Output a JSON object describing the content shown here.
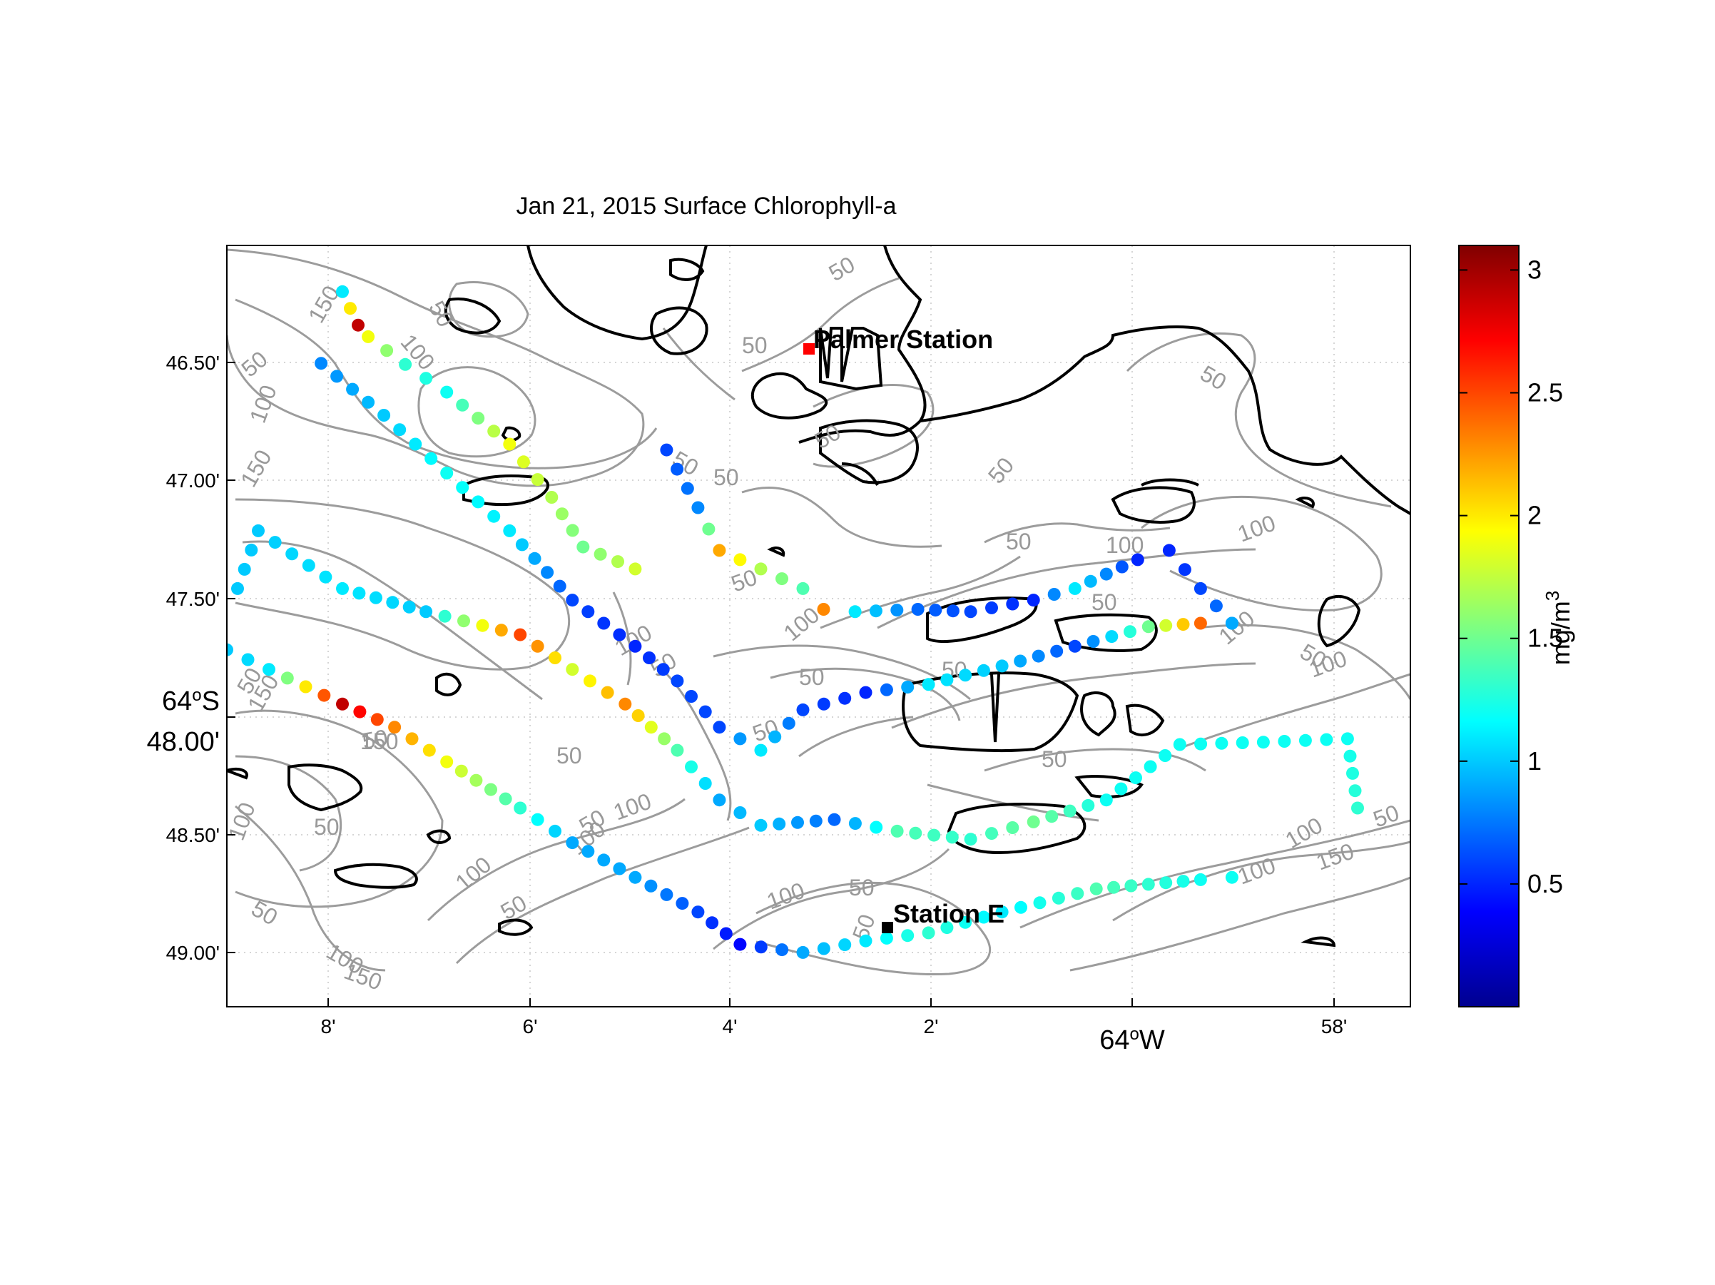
{
  "title": "Jan 21, 2015 Surface Chlorophyll-a",
  "x_axis": {
    "tick_labels": [
      "8'",
      "6'",
      "4'",
      "2'",
      "58'"
    ],
    "degree_label": "64",
    "degree_suffix": "W"
  },
  "y_axis": {
    "tick_labels": [
      "46.50'",
      "47.00'",
      "47.50'",
      "48.00'",
      "48.50'",
      "49.00'"
    ],
    "degree_label": "64",
    "degree_suffix": "S"
  },
  "colorbar": {
    "label": "mg/m",
    "label_sup": "3",
    "tick_labels": [
      "0.5",
      "1",
      "1.5",
      "2",
      "2.5",
      "3"
    ],
    "min": 0,
    "max": 3.1,
    "colormap": "jet"
  },
  "stations": [
    {
      "name": "Palmer Station",
      "marker_color": "#ff0000"
    },
    {
      "name": "Station E",
      "marker_color": "#000000"
    }
  ],
  "contour_labels": [
    "50",
    "100",
    "150"
  ],
  "colors": {
    "coastline": "#000000",
    "bathymetry": "#9c9c9c",
    "grid": "#c8c8c8"
  },
  "chart_data": {
    "type": "scatter",
    "title": "Jan 21, 2015 Surface Chlorophyll-a",
    "xlabel": "64°W",
    "ylabel": "64°S",
    "xlim": [
      -64.1517,
      -63.9633
    ],
    "ylim": [
      -64.8212,
      -64.7553
    ],
    "color_variable": "Surface Chlorophyll-a (mg/m^3)",
    "color_range": [
      0,
      3.1
    ],
    "tracks": [
      {
        "id": "A",
        "points": [
          [
            -64.1333,
            -64.7593,
            1.1
          ],
          [
            -64.1308,
            -64.7622,
            2.9
          ],
          [
            -64.1292,
            -64.7632,
            1.9
          ],
          [
            -64.1233,
            -64.7656,
            1.3
          ],
          [
            -64.1167,
            -64.768,
            1.2
          ],
          [
            -64.1067,
            -64.7725,
            1.9
          ],
          [
            -64.1,
            -64.7771,
            1.7
          ],
          [
            -64.095,
            -64.7814,
            1.5
          ],
          [
            -64.0867,
            -64.7833,
            1.8
          ]
        ]
      },
      {
        "id": "B",
        "points": [
          [
            -64.0817,
            -64.773,
            0.6
          ],
          [
            -64.0767,
            -64.778,
            0.8
          ],
          [
            -64.0733,
            -64.7817,
            2.2
          ],
          [
            -64.0667,
            -64.7833,
            1.7
          ],
          [
            -64.06,
            -64.785,
            1.4
          ],
          [
            -64.0567,
            -64.7868,
            2.3
          ],
          [
            -64.0517,
            -64.787,
            1.1
          ],
          [
            -64.0417,
            -64.7868,
            0.7
          ],
          [
            -64.0333,
            -64.787,
            0.6
          ],
          [
            -64.0233,
            -64.786,
            0.5
          ],
          [
            -64.0167,
            -64.785,
            1.1
          ],
          [
            -64.0067,
            -64.7825,
            0.5
          ],
          [
            -64.0017,
            -64.7817,
            0.5
          ],
          [
            -63.9967,
            -64.785,
            0.6
          ],
          [
            -63.9917,
            -64.788,
            0.8
          ]
        ]
      },
      {
        "id": "C",
        "points": [
          [
            -64.1367,
            -64.7655,
            0.8
          ],
          [
            -64.1267,
            -64.77,
            1.0
          ],
          [
            -64.1167,
            -64.775,
            1.2
          ],
          [
            -64.1067,
            -64.78,
            1.1
          ],
          [
            -64.0967,
            -64.786,
            0.6
          ],
          [
            -64.0867,
            -64.79,
            0.5
          ],
          [
            -64.08,
            -64.793,
            0.6
          ],
          [
            -64.0733,
            -64.797,
            0.6
          ],
          [
            -64.0667,
            -64.799,
            1.1
          ],
          [
            -64.06,
            -64.7955,
            0.6
          ],
          [
            -64.05,
            -64.794,
            0.5
          ],
          [
            -64.04,
            -64.7933,
            1.1
          ],
          [
            -64.0283,
            -64.7917,
            1.0
          ],
          [
            -64.0167,
            -64.79,
            0.6
          ],
          [
            -64.005,
            -64.7883,
            1.5
          ],
          [
            -63.9967,
            -64.788,
            2.4
          ],
          [
            -63.9917,
            -64.788,
            0.9
          ]
        ]
      },
      {
        "id": "D",
        "points": [
          [
            -64.15,
            -64.785,
            1.0
          ],
          [
            -64.1467,
            -64.78,
            1.0
          ],
          [
            -64.1333,
            -64.785,
            1.1
          ],
          [
            -64.12,
            -64.787,
            1.0
          ],
          [
            -64.105,
            -64.789,
            2.5
          ],
          [
            -64.0967,
            -64.792,
            1.8
          ],
          [
            -64.0883,
            -64.795,
            2.3
          ],
          [
            -64.08,
            -64.799,
            1.4
          ],
          [
            -64.0733,
            -64.8033,
            0.9
          ],
          [
            -64.0667,
            -64.8055,
            1.0
          ],
          [
            -64.055,
            -64.805,
            0.7
          ],
          [
            -64.045,
            -64.806,
            1.4
          ],
          [
            -64.0333,
            -64.8067,
            1.3
          ],
          [
            -64.0233,
            -64.8052,
            1.5
          ],
          [
            -64.0117,
            -64.8033,
            1.2
          ],
          [
            -64.0,
            -64.7985,
            1.2
          ],
          [
            -63.9867,
            -64.7983,
            1.2
          ],
          [
            -63.9733,
            -64.798,
            1.2
          ],
          [
            -63.9717,
            -64.804,
            1.3
          ]
        ]
      },
      {
        "id": "E",
        "points": [
          [
            -64.1517,
            -64.7903,
            1.0
          ],
          [
            -64.145,
            -64.792,
            1.1
          ],
          [
            -64.1333,
            -64.795,
            2.9
          ],
          [
            -64.125,
            -64.797,
            2.3
          ],
          [
            -64.1167,
            -64.8,
            1.9
          ],
          [
            -64.105,
            -64.804,
            1.3
          ],
          [
            -64.0967,
            -64.807,
            0.9
          ],
          [
            -64.0867,
            -64.81,
            0.9
          ],
          [
            -64.0767,
            -64.813,
            0.6
          ],
          [
            -64.07,
            -64.8158,
            0.4
          ],
          [
            -64.06,
            -64.8165,
            0.9
          ],
          [
            -64.05,
            -64.8155,
            1.1
          ],
          [
            -64.04,
            -64.8148,
            1.3
          ],
          [
            -64.0283,
            -64.813,
            1.1
          ],
          [
            -64.0133,
            -64.811,
            1.4
          ],
          [
            -63.9967,
            -64.8102,
            1.2
          ],
          [
            -63.9917,
            -64.81,
            1.2
          ]
        ]
      }
    ],
    "stations": [
      {
        "name": "Palmer Station",
        "lon": -64.0533,
        "lat": -64.7745
      },
      {
        "name": "Station E",
        "lon": -64.0417,
        "lat": -64.8177
      }
    ]
  }
}
